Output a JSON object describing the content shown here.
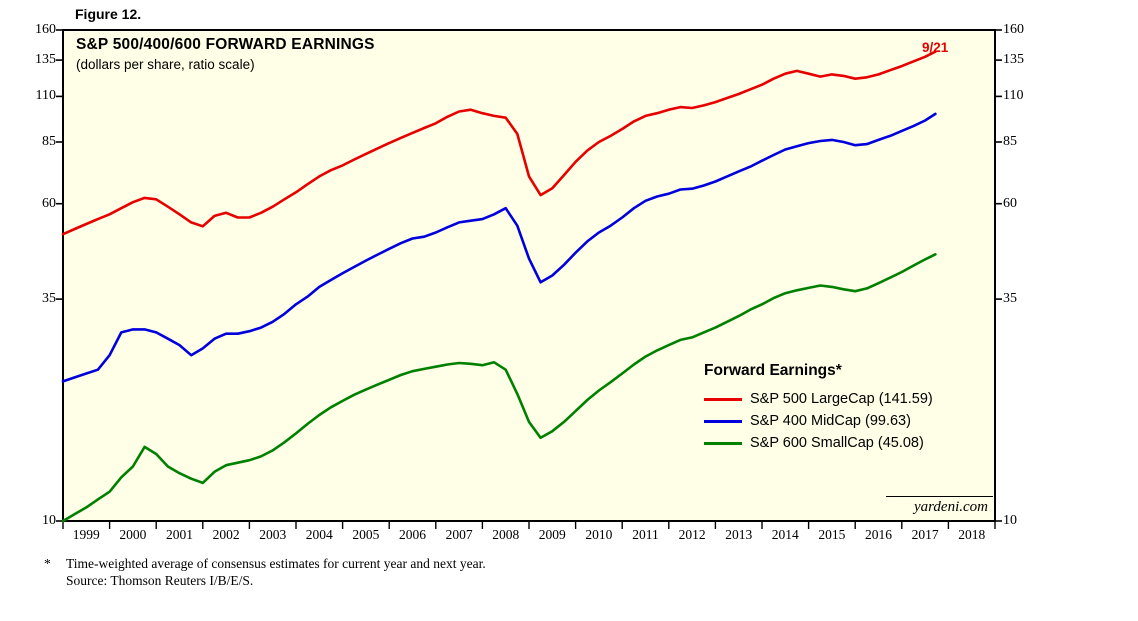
{
  "figure_label": "Figure 12.",
  "watermark": "yardeni.com",
  "colors": {
    "plot_background": "#fffee6",
    "frame": "#000000",
    "annotation_red": "#e60000"
  },
  "footnote": {
    "marker": "*",
    "line1": "Time-weighted average of consensus estimates for current year and next year.",
    "line2": "Source: Thomson Reuters I/B/E/S."
  },
  "chart_data": {
    "type": "line",
    "title": "S&P 500/400/600 FORWARD EARNINGS",
    "subtitle": "(dollars per share, ratio scale)",
    "annotation": "9/21",
    "legend_title": "Forward Earnings*",
    "scale": "log",
    "grid": false,
    "legend_position": "inside-right-middle",
    "xlabel": "",
    "ylabel": "dollars per share",
    "ylim": [
      10,
      160
    ],
    "x_range": [
      1999,
      2019
    ],
    "y_ticks": [
      160,
      135,
      110,
      85,
      60,
      35,
      10
    ],
    "x_tick_years": [
      1999,
      2000,
      2001,
      2002,
      2003,
      2004,
      2005,
      2006,
      2007,
      2008,
      2009,
      2010,
      2011,
      2012,
      2013,
      2014,
      2015,
      2016,
      2017,
      2018
    ],
    "x": [
      1999,
      1999.25,
      1999.5,
      1999.75,
      2000,
      2000.25,
      2000.5,
      2000.75,
      2001,
      2001.25,
      2001.5,
      2001.75,
      2002,
      2002.25,
      2002.5,
      2002.75,
      2003,
      2003.25,
      2003.5,
      2003.75,
      2004,
      2004.25,
      2004.5,
      2004.75,
      2005,
      2005.25,
      2005.5,
      2005.75,
      2006,
      2006.25,
      2006.5,
      2006.75,
      2007,
      2007.25,
      2007.5,
      2007.75,
      2008,
      2008.25,
      2008.5,
      2008.75,
      2009,
      2009.25,
      2009.5,
      2009.75,
      2010,
      2010.25,
      2010.5,
      2010.75,
      2011,
      2011.25,
      2011.5,
      2011.75,
      2012,
      2012.25,
      2012.5,
      2012.75,
      2013,
      2013.25,
      2013.5,
      2013.75,
      2014,
      2014.25,
      2014.5,
      2014.75,
      2015,
      2015.25,
      2015.5,
      2015.75,
      2016,
      2016.25,
      2016.5,
      2016.75,
      2017,
      2017.25,
      2017.5,
      2017.72
    ],
    "series": [
      {
        "name": "S&P 500 LargeCap",
        "legend_label": "S&P 500 LargeCap (141.59)",
        "final_value": 141.59,
        "color": "#e60000",
        "values": [
          50.5,
          52,
          53.5,
          55,
          56.5,
          58.5,
          60.5,
          62,
          61.5,
          59,
          56.5,
          54,
          52.8,
          56,
          57,
          55.5,
          55.5,
          57,
          59,
          61.5,
          64,
          67,
          70,
          72.5,
          74.5,
          77,
          79.5,
          82,
          84.5,
          87,
          89.5,
          92,
          94.5,
          98,
          101,
          102,
          100,
          98.5,
          97.5,
          89,
          70,
          63,
          65.5,
          70.5,
          76,
          81,
          85,
          88,
          91.5,
          95.5,
          98.5,
          100,
          102,
          103.5,
          103,
          104.5,
          106.5,
          109,
          111.5,
          114.5,
          117.5,
          121.5,
          125,
          127,
          125,
          123,
          124.5,
          123.5,
          121.5,
          122.5,
          124.5,
          127.5,
          130.5,
          134,
          137.5,
          141.59
        ]
      },
      {
        "name": "S&P 400 MidCap",
        "legend_label": "S&P 400 MidCap (99.63)",
        "final_value": 99.63,
        "color": "#0000dd",
        "values": [
          22,
          22.5,
          23,
          23.5,
          25.5,
          29,
          29.5,
          29.5,
          29,
          28,
          27,
          25.5,
          26.5,
          28,
          28.8,
          28.8,
          29.2,
          29.8,
          30.8,
          32.2,
          34,
          35.5,
          37.5,
          39,
          40.5,
          42,
          43.5,
          45,
          46.5,
          48,
          49.3,
          49.8,
          51,
          52.5,
          54,
          54.5,
          55,
          56.5,
          58.5,
          53,
          44,
          38.5,
          40,
          42.5,
          45.5,
          48.5,
          51,
          53,
          55.5,
          58.5,
          61,
          62.5,
          63.5,
          65,
          65.3,
          66.5,
          68,
          70,
          72,
          74,
          76.5,
          79,
          81.5,
          83,
          84.5,
          85.5,
          86,
          85,
          83.5,
          84,
          86,
          88,
          90.5,
          93,
          96,
          99.63
        ]
      },
      {
        "name": "S&P 600 SmallCap",
        "legend_label": "S&P 600 SmallCap (45.08)",
        "final_value": 45.08,
        "color": "#008000",
        "values": [
          10,
          10.4,
          10.8,
          11.3,
          11.8,
          12.8,
          13.6,
          15.2,
          14.6,
          13.6,
          13.1,
          12.7,
          12.4,
          13.2,
          13.7,
          13.9,
          14.1,
          14.4,
          14.9,
          15.6,
          16.4,
          17.3,
          18.2,
          19,
          19.7,
          20.4,
          21,
          21.6,
          22.2,
          22.8,
          23.3,
          23.6,
          23.9,
          24.2,
          24.4,
          24.3,
          24.1,
          24.5,
          23.5,
          20.5,
          17.5,
          16,
          16.6,
          17.5,
          18.6,
          19.8,
          20.9,
          21.9,
          23,
          24.2,
          25.3,
          26.2,
          27,
          27.8,
          28.2,
          29,
          29.8,
          30.8,
          31.8,
          33,
          34,
          35.2,
          36.2,
          36.8,
          37.3,
          37.8,
          37.5,
          37,
          36.6,
          37.2,
          38.3,
          39.5,
          40.8,
          42.3,
          43.8,
          45.08
        ]
      }
    ]
  }
}
